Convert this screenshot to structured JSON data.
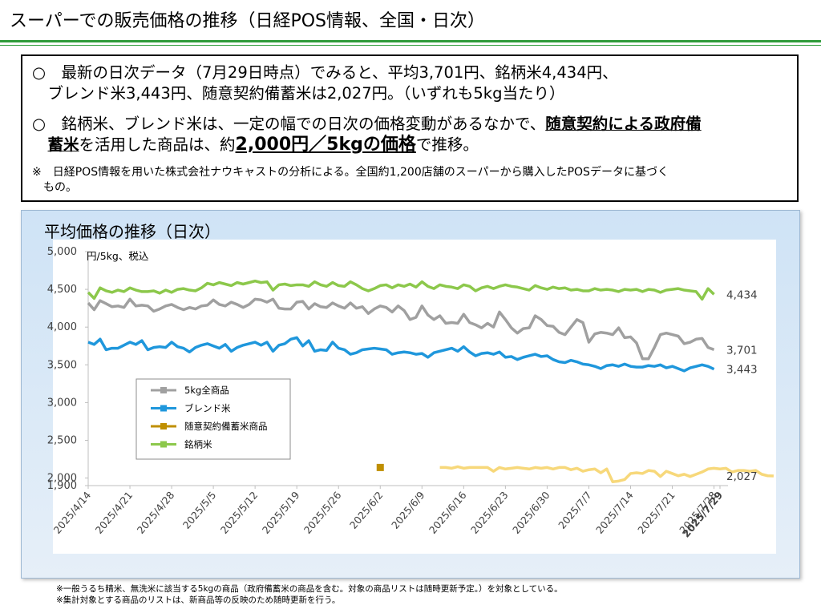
{
  "page": {
    "title": "スーパーでの販売価格の推移（日経POS情報、全国・日次）"
  },
  "summary": {
    "bullet1_a": "○　最新の日次データ（7月29日時点）でみると、平均3,701円、銘柄米4,434円、",
    "bullet1_b": "　ブレンド米3,443円、随意契約備蓄米は2,027円。（いずれも5kg当たり）",
    "bullet2_a": "○　銘柄米、ブレンド米は、一定の幅での日次の価格変動があるなかで、",
    "bullet2_u1": "随意契約による政府備",
    "bullet2_u2": "蓄米",
    "bullet2_b": "を活用した商品は、約",
    "bullet2_big": "2,000円／5kgの価格",
    "bullet2_c": "で推移。",
    "note_a": "※　日経POS情報を用いた株式会社ナウキャストの分析による。全国約1,200店舗のスーパーから購入したPOSデータに基づく",
    "note_b": "　もの。"
  },
  "panel": {
    "title": "平均価格の推移（日次）"
  },
  "footnotes": {
    "line1": "※一般うるち精米、無洗米に該当する5kgの商品（政府備蓄米の商品を含む。対象の商品リストは随時更新予定。）を対象としている。",
    "line2": "※集計対象とする商品のリストは、新商品等の反映のため随時更新を行う。"
  },
  "chart_data": {
    "type": "line",
    "ylabel": "円/5kg、税込",
    "ylim": [
      1900,
      5000
    ],
    "y_ticks": [
      "1,900",
      "2,000",
      "2,500",
      "3,000",
      "3,500",
      "4,000",
      "4,500",
      "5,000"
    ],
    "y_tick_values": [
      1900,
      2000,
      2500,
      3000,
      3500,
      4000,
      4500,
      5000
    ],
    "x_start": "2025/4/14",
    "x_end": "2025/7/29",
    "x_tick_labels": [
      "2025/4/14",
      "2025/4/21",
      "2025/4/28",
      "2025/5/5",
      "2025/5/12",
      "2025/5/19",
      "2025/5/26",
      "2025/6/2",
      "2025/6/9",
      "2025/6/16",
      "2025/6/23",
      "2025/6/30",
      "2025/7/7",
      "2025/7/14",
      "2025/7/21",
      "2025/7/28",
      "2025/7/29"
    ],
    "grid": false,
    "legend_position": "left-middle",
    "end_labels": [
      {
        "series": "銘柄米",
        "text": "4,434"
      },
      {
        "series": "5kg全商品",
        "text": "3,701"
      },
      {
        "series": "ブレンド米",
        "text": "3,443"
      },
      {
        "series": "随意契約備蓄米商品",
        "text": "2,027"
      }
    ],
    "series": [
      {
        "name": "5kg全商品",
        "color": "#a0a0a0",
        "style": "line",
        "x_start": "2025/4/14",
        "values": [
          4320,
          4230,
          4350,
          4310,
          4270,
          4280,
          4260,
          4370,
          4280,
          4290,
          4280,
          4210,
          4240,
          4280,
          4300,
          4260,
          4230,
          4260,
          4240,
          4280,
          4290,
          4360,
          4300,
          4280,
          4330,
          4300,
          4260,
          4300,
          4370,
          4360,
          4330,
          4370,
          4250,
          4240,
          4240,
          4330,
          4340,
          4240,
          4310,
          4270,
          4260,
          4320,
          4280,
          4250,
          4320,
          4250,
          4270,
          4180,
          4240,
          4280,
          4260,
          4200,
          4280,
          4220,
          4100,
          4130,
          4280,
          4160,
          4100,
          4150,
          4050,
          4060,
          4050,
          4170,
          4060,
          4030,
          3990,
          4050,
          4000,
          4200,
          4100,
          3990,
          3920,
          3980,
          3990,
          4150,
          4100,
          4020,
          4010,
          3930,
          3900,
          4000,
          4100,
          4060,
          3800,
          3910,
          3930,
          3920,
          3900,
          3990,
          3860,
          3870,
          3790,
          3580,
          3580,
          3730,
          3900,
          3920,
          3900,
          3880,
          3780,
          3800,
          3840,
          3850,
          3730,
          3701
        ]
      },
      {
        "name": "ブレンド米",
        "color": "#1f97dc",
        "style": "line",
        "x_start": "2025/4/14",
        "values": [
          3800,
          3770,
          3840,
          3700,
          3720,
          3720,
          3760,
          3800,
          3770,
          3820,
          3700,
          3730,
          3740,
          3730,
          3800,
          3740,
          3720,
          3670,
          3730,
          3760,
          3780,
          3750,
          3720,
          3770,
          3680,
          3730,
          3760,
          3780,
          3800,
          3760,
          3800,
          3680,
          3760,
          3780,
          3840,
          3860,
          3750,
          3820,
          3680,
          3700,
          3690,
          3800,
          3720,
          3700,
          3640,
          3660,
          3700,
          3710,
          3720,
          3710,
          3700,
          3640,
          3660,
          3670,
          3660,
          3640,
          3650,
          3600,
          3660,
          3680,
          3700,
          3720,
          3680,
          3740,
          3670,
          3620,
          3650,
          3660,
          3640,
          3670,
          3600,
          3610,
          3570,
          3600,
          3620,
          3640,
          3610,
          3620,
          3570,
          3540,
          3530,
          3560,
          3540,
          3510,
          3500,
          3480,
          3450,
          3490,
          3500,
          3480,
          3510,
          3480,
          3470,
          3470,
          3490,
          3480,
          3500,
          3460,
          3480,
          3450,
          3420,
          3460,
          3480,
          3500,
          3480,
          3443
        ]
      },
      {
        "name": "随意契約備蓄米商品",
        "color": "#bf8f00",
        "style": "marker",
        "points": [
          {
            "x": "2025/6/2",
            "y": 2140
          }
        ]
      },
      {
        "name": "随意契約備蓄米商品",
        "color": "#f7d87a",
        "style": "line",
        "x_start": "2025/6/12",
        "values": [
          2140,
          2140,
          2130,
          2150,
          2130,
          2140,
          2140,
          2140,
          2140,
          2090,
          2140,
          2120,
          2130,
          2140,
          2130,
          2120,
          2140,
          2130,
          2140,
          2120,
          2140,
          2140,
          2110,
          2130,
          2090,
          2110,
          2120,
          2070,
          2120,
          1950,
          1960,
          1980,
          2060,
          2070,
          2060,
          2100,
          2090,
          2020,
          2090,
          2060,
          2030,
          2050,
          2020,
          2050,
          2080,
          2120,
          2130,
          2120,
          2130,
          2080,
          2100,
          2100,
          2090,
          2100,
          2050,
          2030,
          2027
        ]
      },
      {
        "name": "銘柄米",
        "color": "#8cc84b",
        "style": "line",
        "x_start": "2025/4/14",
        "values": [
          4460,
          4380,
          4520,
          4480,
          4460,
          4490,
          4470,
          4520,
          4490,
          4470,
          4470,
          4480,
          4450,
          4490,
          4460,
          4500,
          4510,
          4490,
          4480,
          4520,
          4580,
          4560,
          4590,
          4570,
          4550,
          4590,
          4570,
          4590,
          4610,
          4590,
          4600,
          4490,
          4560,
          4570,
          4550,
          4560,
          4560,
          4540,
          4600,
          4560,
          4540,
          4590,
          4550,
          4540,
          4600,
          4560,
          4510,
          4480,
          4510,
          4550,
          4560,
          4520,
          4560,
          4540,
          4570,
          4530,
          4600,
          4540,
          4510,
          4560,
          4540,
          4530,
          4510,
          4560,
          4540,
          4480,
          4520,
          4540,
          4510,
          4540,
          4560,
          4540,
          4530,
          4510,
          4490,
          4550,
          4520,
          4500,
          4530,
          4510,
          4520,
          4490,
          4500,
          4480,
          4480,
          4510,
          4490,
          4500,
          4490,
          4470,
          4500,
          4490,
          4500,
          4470,
          4500,
          4490,
          4460,
          4490,
          4500,
          4510,
          4490,
          4480,
          4470,
          4370,
          4510,
          4434
        ]
      }
    ]
  }
}
